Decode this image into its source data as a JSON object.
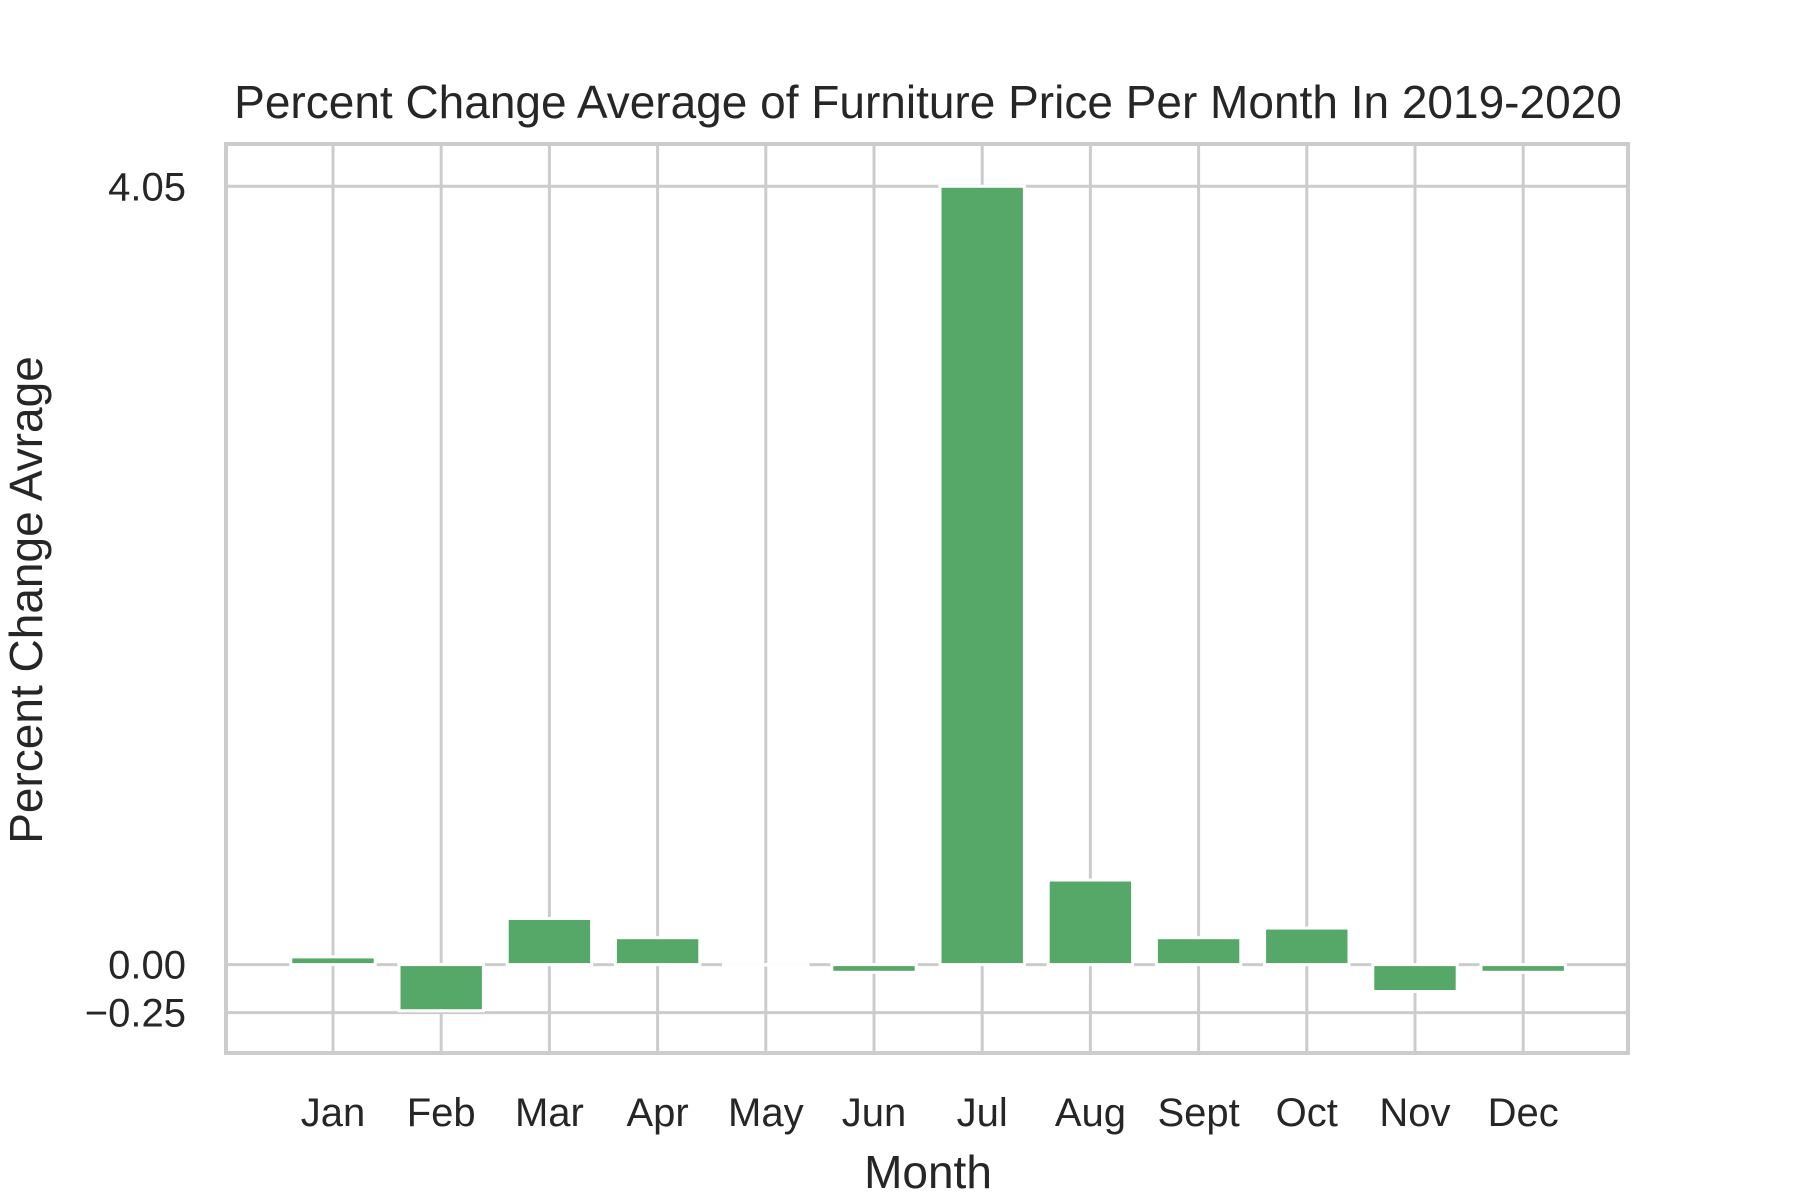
{
  "chart_data": {
    "type": "bar",
    "title": "Percent Change Average of Furniture Price Per Month In 2019-2020",
    "xlabel": "Month",
    "ylabel": "Percent Change Avrage",
    "categories": [
      "Jan",
      "Feb",
      "Mar",
      "Apr",
      "May",
      "Jun",
      "Jul",
      "Aug",
      "Sept",
      "Oct",
      "Nov",
      "Dec"
    ],
    "values": [
      0.04,
      -0.24,
      0.24,
      0.14,
      0.0,
      -0.04,
      4.05,
      0.44,
      0.14,
      0.19,
      -0.14,
      -0.04
    ],
    "yticks": [
      4.05,
      0.0,
      -0.25
    ],
    "ytick_labels": [
      "4.05",
      "0.00",
      "−0.25"
    ],
    "ylim": [
      -0.46,
      4.27
    ],
    "grid": true,
    "bar_color": "#55a868",
    "grid_color": "#cccccc",
    "text_color": "#262626"
  }
}
